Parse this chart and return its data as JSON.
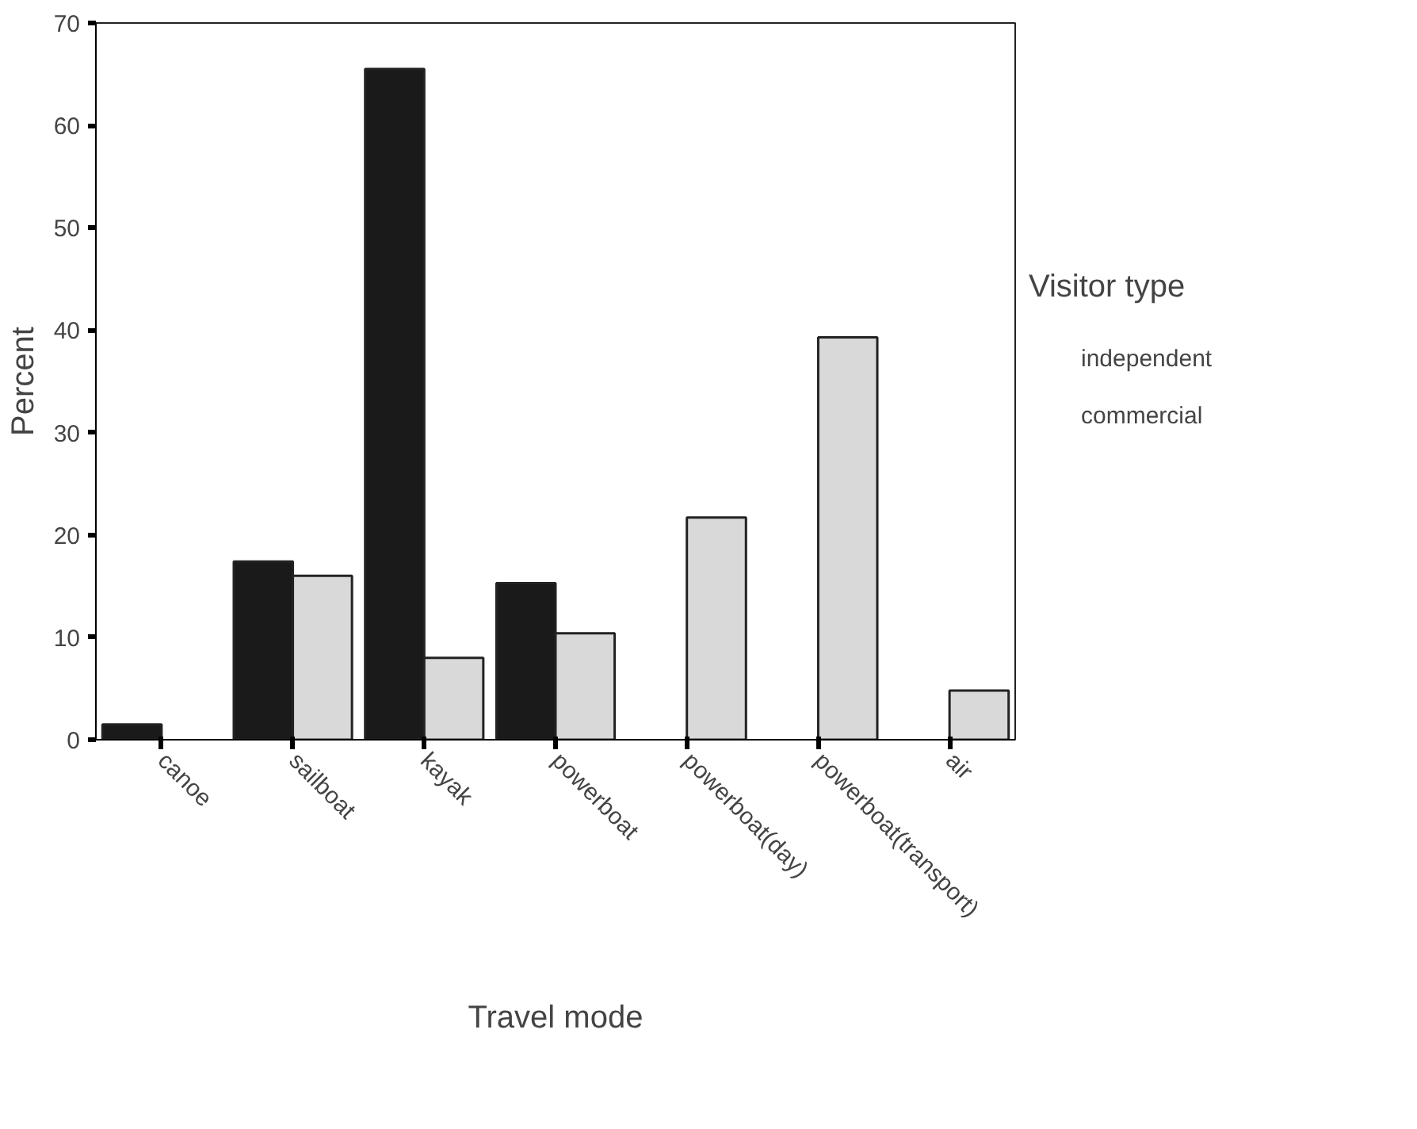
{
  "chart_data": {
    "type": "bar",
    "xlabel": "Travel mode",
    "ylabel": "Percent",
    "legend_title": "Visitor type",
    "categories": [
      "canoe",
      "sailboat",
      "kayak",
      "powerboat",
      "powerboat(day)",
      "powerboat(transport)",
      "air"
    ],
    "series": [
      {
        "name": "independent",
        "color": "#1a1a1a",
        "values": [
          1.5,
          17.4,
          65.5,
          15.3,
          null,
          null,
          null
        ]
      },
      {
        "name": "commercial",
        "color": "#d9d9d9",
        "values": [
          null,
          16.0,
          8.0,
          10.4,
          21.7,
          39.3,
          4.8
        ]
      }
    ],
    "ylim": [
      0,
      70
    ],
    "yticks": [
      0,
      10,
      20,
      30,
      40,
      50,
      60,
      70
    ],
    "grid": false,
    "legend": "right"
  }
}
